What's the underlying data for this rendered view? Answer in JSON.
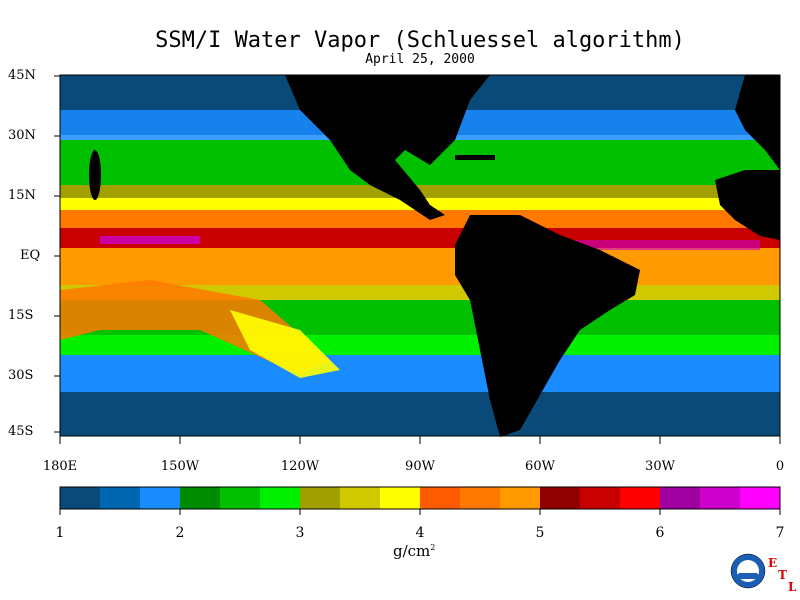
{
  "title": "SSM/I Water Vapor (Schluessel algorithm)",
  "subtitle": "April 25, 2000",
  "lat_labels": [
    "45N",
    "30N",
    "15N",
    "EQ",
    "15S",
    "30S",
    "45S"
  ],
  "lon_labels": [
    "180E",
    "150W",
    "120W",
    "90W",
    "60W",
    "30W",
    "0"
  ],
  "colorbar": {
    "ticks": [
      "1",
      "2",
      "3",
      "4",
      "5",
      "6",
      "7"
    ],
    "units_text": "g/cm",
    "units_sup": "2",
    "range": [
      1,
      7
    ],
    "colors": [
      "#0a4a78",
      "#0066b0",
      "#1a8cff",
      "#008c00",
      "#00c000",
      "#00f000",
      "#a0a000",
      "#d0c800",
      "#ffff00",
      "#ff5a00",
      "#ff7800",
      "#ff9a00",
      "#900000",
      "#c80000",
      "#ff0000",
      "#a000a0",
      "#cc00cc",
      "#ff00ff"
    ]
  },
  "map_colors": {
    "land": "#000000",
    "low": "#0a4a78",
    "mid_low": "#1a8cff",
    "green": "#00c000",
    "bright_green": "#00f000",
    "olive": "#a0a000",
    "yellow": "#ffff00",
    "orange": "#ff7800",
    "red": "#c80000",
    "magenta": "#cc00cc"
  },
  "logo": {
    "name": "NOAA",
    "letters": [
      "E",
      "T",
      "L"
    ]
  }
}
